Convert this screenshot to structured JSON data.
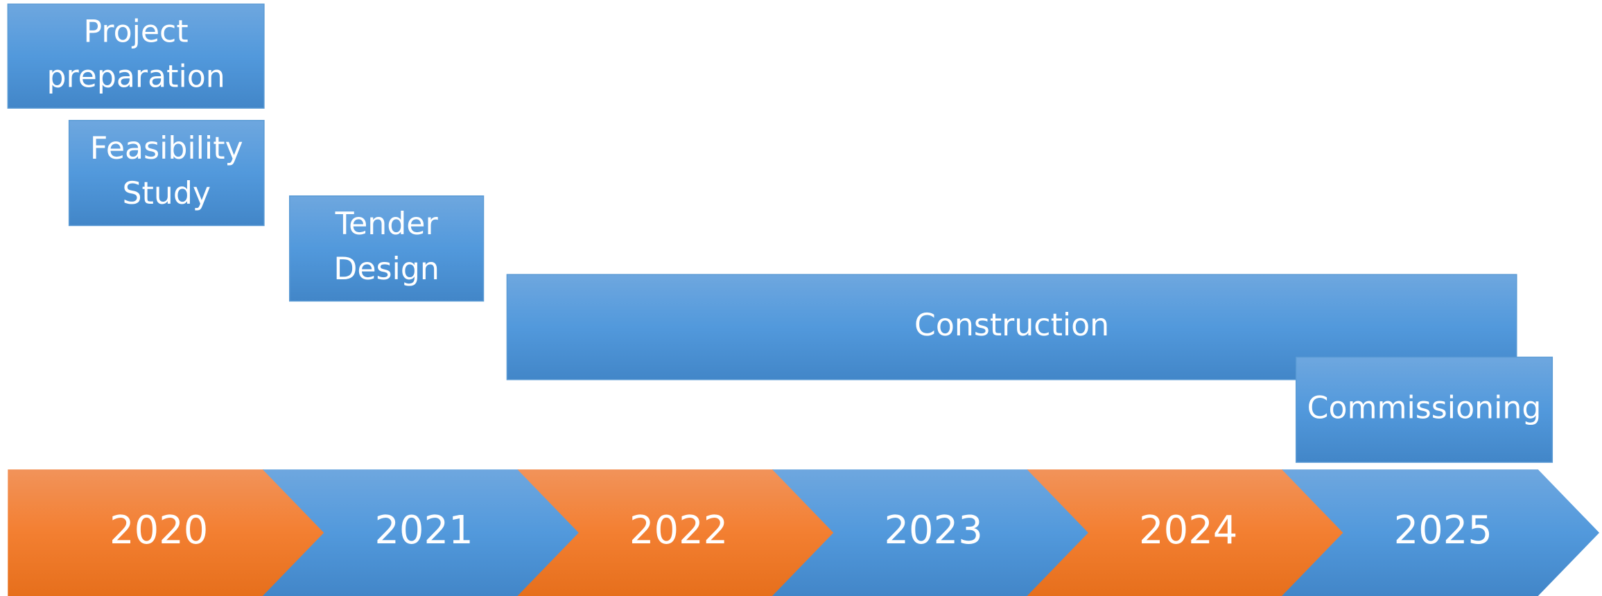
{
  "phases": [
    {
      "lines": [
        "Project",
        "preparation"
      ]
    },
    {
      "lines": [
        "Feasibility",
        "Study"
      ]
    },
    {
      "lines": [
        "Tender",
        "Design"
      ]
    },
    {
      "lines": [
        "Construction"
      ]
    },
    {
      "lines": [
        "Commissioning"
      ]
    }
  ],
  "years": [
    "2020",
    "2021",
    "2022",
    "2023",
    "2024",
    "2025"
  ]
}
